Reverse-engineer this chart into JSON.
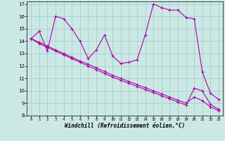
{
  "background_color": "#cce8e4",
  "line_color": "#aa00aa",
  "grid_color": "#99cccc",
  "xlim": [
    -0.5,
    23.5
  ],
  "ylim": [
    8,
    17.2
  ],
  "xticks": [
    0,
    1,
    2,
    3,
    4,
    5,
    6,
    7,
    8,
    9,
    10,
    11,
    12,
    13,
    14,
    15,
    16,
    17,
    18,
    19,
    20,
    21,
    22,
    23
  ],
  "yticks": [
    8,
    9,
    10,
    11,
    12,
    13,
    14,
    15,
    16,
    17
  ],
  "xlabel": "Windchill (Refroidissement éolien,°C)",
  "wavy": [
    14.2,
    14.8,
    13.2,
    16.0,
    15.8,
    15.0,
    14.0,
    12.6,
    13.3,
    14.5,
    12.8,
    12.2,
    12.3,
    12.5,
    14.5,
    17.0,
    16.7,
    16.5,
    16.5,
    15.9,
    15.8,
    11.5,
    9.8,
    9.3
  ],
  "straight1": [
    14.2,
    13.8,
    13.5,
    13.2,
    12.9,
    12.6,
    12.3,
    12.0,
    11.7,
    11.4,
    11.1,
    10.85,
    10.6,
    10.35,
    10.1,
    9.85,
    9.6,
    9.35,
    9.1,
    8.85,
    10.2,
    10.0,
    8.9,
    8.5
  ],
  "straight2": [
    14.2,
    13.9,
    13.6,
    13.3,
    13.0,
    12.7,
    12.4,
    12.15,
    11.85,
    11.55,
    11.25,
    11.0,
    10.75,
    10.5,
    10.25,
    10.0,
    9.75,
    9.5,
    9.25,
    9.0,
    9.5,
    9.2,
    8.7,
    8.4
  ]
}
